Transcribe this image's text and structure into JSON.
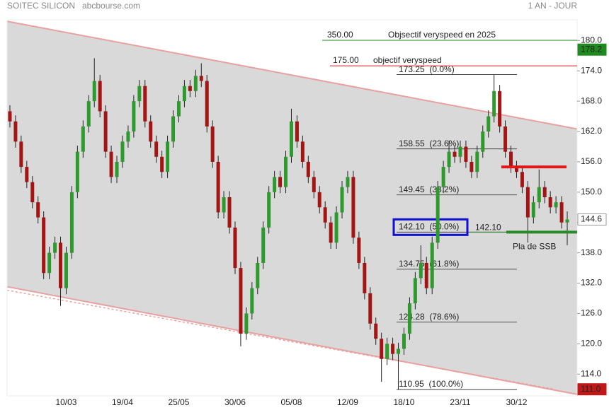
{
  "chart_data": {
    "type": "candlestick",
    "title": "SOITEC SILICON",
    "source": "abcbourse.com",
    "period": "1 AN - JOUR",
    "up_color": "#2e9a2e",
    "down_color": "#a31515",
    "categories": [
      null,
      null,
      null,
      null,
      null,
      null,
      null,
      null,
      null,
      null,
      "10/03",
      null,
      null,
      null,
      null,
      null,
      null,
      null,
      null,
      null,
      "19/04",
      null,
      null,
      null,
      null,
      null,
      null,
      null,
      null,
      null,
      "25/05",
      null,
      null,
      null,
      null,
      null,
      null,
      null,
      null,
      null,
      "30/06",
      null,
      null,
      null,
      null,
      null,
      null,
      null,
      null,
      null,
      "05/08",
      null,
      null,
      null,
      null,
      null,
      null,
      null,
      null,
      null,
      "12/09",
      null,
      null,
      null,
      null,
      null,
      null,
      null,
      null,
      null,
      "18/10",
      null,
      null,
      null,
      null,
      null,
      null,
      null,
      null,
      null,
      "23/11",
      null,
      null,
      null,
      null,
      null,
      null,
      null,
      null,
      null,
      "30/12",
      null,
      null,
      null,
      null,
      null,
      null,
      null,
      null,
      null
    ],
    "ohlc": [
      [
        166,
        167.2,
        162.8,
        164
      ],
      [
        164,
        165.2,
        158.8,
        160
      ],
      [
        160,
        161.2,
        153.8,
        155
      ],
      [
        155,
        156.2,
        150.8,
        152
      ],
      [
        152,
        153.2,
        146.8,
        148
      ],
      [
        148,
        149.2,
        143.8,
        145
      ],
      [
        145,
        146.2,
        132.8,
        134
      ],
      [
        134,
        139.2,
        132.8,
        138
      ],
      [
        138,
        141.2,
        136.8,
        140
      ],
      [
        140,
        141.2,
        127.5,
        131
      ],
      [
        131,
        139.2,
        129.8,
        138
      ],
      [
        138,
        151.2,
        136.8,
        150
      ],
      [
        150,
        159.2,
        148.8,
        158
      ],
      [
        158,
        164.2,
        156.8,
        163
      ],
      [
        163,
        169.2,
        161.8,
        168
      ],
      [
        168,
        176.5,
        166.8,
        172
      ],
      [
        172,
        173.2,
        164.8,
        166
      ],
      [
        166,
        167.2,
        156.8,
        158
      ],
      [
        158,
        159.2,
        151.8,
        153
      ],
      [
        153,
        157.2,
        151.8,
        156
      ],
      [
        156,
        161.2,
        154.8,
        160
      ],
      [
        160,
        163.2,
        158.8,
        162
      ],
      [
        162,
        169.2,
        160.8,
        168
      ],
      [
        168,
        172.2,
        166.8,
        171
      ],
      [
        171,
        172.2,
        162.8,
        164
      ],
      [
        164,
        165.2,
        158.8,
        160
      ],
      [
        160,
        161.2,
        155.8,
        157
      ],
      [
        157,
        158.2,
        152.8,
        154
      ],
      [
        154,
        161.2,
        152.8,
        160
      ],
      [
        160,
        166.2,
        158.8,
        165
      ],
      [
        165,
        169.2,
        163.8,
        168
      ],
      [
        168,
        172.2,
        166.8,
        171
      ],
      [
        171,
        172.2,
        168.8,
        170
      ],
      [
        170,
        174.2,
        168.8,
        173
      ],
      [
        173,
        175.5,
        170.8,
        172
      ],
      [
        172,
        173.2,
        161.8,
        163
      ],
      [
        163,
        164.2,
        154.8,
        156
      ],
      [
        156,
        157.2,
        144.8,
        146
      ],
      [
        146,
        150.2,
        144.8,
        149
      ],
      [
        149,
        150.2,
        141.8,
        143
      ],
      [
        143,
        144.2,
        133.8,
        135
      ],
      [
        135,
        136.2,
        119.5,
        122
      ],
      [
        122,
        127.2,
        120.8,
        126
      ],
      [
        126,
        132.2,
        124.8,
        131
      ],
      [
        131,
        137.2,
        129.8,
        136
      ],
      [
        136,
        144.2,
        134.8,
        143
      ],
      [
        143,
        151.2,
        141.8,
        150
      ],
      [
        150,
        154.2,
        148.8,
        153
      ],
      [
        153,
        154.2,
        149.8,
        151
      ],
      [
        151,
        158.2,
        149.8,
        157
      ],
      [
        157,
        166.5,
        155.8,
        164
      ],
      [
        164,
        165.2,
        158.8,
        160
      ],
      [
        160,
        161.2,
        154.8,
        156
      ],
      [
        156,
        157.2,
        151.8,
        153
      ],
      [
        153,
        154.2,
        148.8,
        150
      ],
      [
        150,
        151.2,
        145.8,
        147
      ],
      [
        147,
        148.2,
        142.8,
        144
      ],
      [
        144,
        145.2,
        138.8,
        140
      ],
      [
        140,
        147.2,
        138.8,
        146
      ],
      [
        146,
        152.2,
        144.8,
        151
      ],
      [
        151,
        154.2,
        149.8,
        153
      ],
      [
        153,
        154.2,
        139.8,
        141
      ],
      [
        141,
        142.2,
        134.8,
        136
      ],
      [
        136,
        137.2,
        128.8,
        130
      ],
      [
        130,
        131.2,
        122.8,
        124
      ],
      [
        124,
        125.2,
        119.8,
        121
      ],
      [
        121,
        122.2,
        112.5,
        117
      ],
      [
        117,
        121.2,
        115.8,
        120
      ],
      [
        120,
        121.2,
        116.8,
        118
      ],
      [
        118,
        120.2,
        110.95,
        119
      ],
      [
        119,
        123.2,
        117.8,
        122
      ],
      [
        122,
        129.2,
        120.8,
        128
      ],
      [
        128,
        134.2,
        126.8,
        133
      ],
      [
        133,
        139.5,
        131.8,
        136
      ],
      [
        136,
        137.2,
        129.8,
        131
      ],
      [
        131,
        141.2,
        129.8,
        140
      ],
      [
        140,
        152.2,
        138.8,
        151
      ],
      [
        151,
        156.2,
        149.8,
        155
      ],
      [
        155,
        160.2,
        153.8,
        158
      ],
      [
        158,
        159.2,
        155.8,
        157
      ],
      [
        157,
        160.2,
        155.8,
        159
      ],
      [
        159,
        160.2,
        154.8,
        156
      ],
      [
        156,
        157.2,
        152.8,
        154
      ],
      [
        154,
        159.2,
        152.8,
        158
      ],
      [
        158,
        163.2,
        156.8,
        162
      ],
      [
        162,
        166.2,
        160.8,
        165
      ],
      [
        165,
        173.25,
        163.8,
        170
      ],
      [
        170,
        171.2,
        161.8,
        163
      ],
      [
        163,
        164.2,
        156.8,
        158
      ],
      [
        158,
        159.2,
        153.8,
        155
      ],
      [
        155,
        156.2,
        152.8,
        154
      ],
      [
        154,
        155.2,
        149.8,
        151
      ],
      [
        151,
        152.2,
        140,
        145
      ],
      [
        145,
        149.2,
        143.8,
        148
      ],
      [
        148,
        154.5,
        146.8,
        151
      ],
      [
        151,
        152.2,
        147.8,
        149
      ],
      [
        149,
        150.2,
        145.8,
        147
      ],
      [
        147,
        149.2,
        145.8,
        148
      ],
      [
        148,
        149.2,
        142.8,
        144
      ],
      [
        144,
        146.2,
        139.5,
        144.6
      ]
    ],
    "ylim": [
      109.7,
      184.1
    ],
    "yticks": [
      {
        "value": 114,
        "label": "114.0"
      },
      {
        "value": 120,
        "label": "120.0"
      },
      {
        "value": 126,
        "label": "126.0"
      },
      {
        "value": 132,
        "label": "132.0"
      },
      {
        "value": 138,
        "label": "138.0"
      },
      {
        "value": 144,
        "label": "144.0"
      },
      {
        "value": 150,
        "label": "150.0"
      },
      {
        "value": 156,
        "label": "156.0"
      },
      {
        "value": 162,
        "label": "162.0"
      },
      {
        "value": 168,
        "label": "168.0"
      },
      {
        "value": 174,
        "label": "174.0"
      },
      {
        "value": 180,
        "label": "180.0"
      }
    ],
    "channel": {
      "upper": [
        183.8,
        162.5
      ],
      "lower": [
        131.3,
        110
      ],
      "lower_dashed": [
        130.6,
        111.1
      ],
      "color": "#e8a0a0"
    },
    "fibonacci": [
      {
        "value": 173.25,
        "label": "173.25  (0.0%)"
      },
      {
        "value": 158.55,
        "label": "158.55  (23.6%)"
      },
      {
        "value": 149.45,
        "label": "149.45  (38.2%)"
      },
      {
        "value": 142.1,
        "label": "142.10  (50.0%)"
      },
      {
        "value": 134.75,
        "label": "134.75  (61.8%)"
      },
      {
        "value": 124.28,
        "label": "124.28  (78.6%)"
      },
      {
        "value": 110.95,
        "label": "110.95  (100.0%)"
      }
    ],
    "objectives": [
      {
        "label": "350.00",
        "text": "Objsectif veryspeed en 2025",
        "color": "#1f8a1f"
      },
      {
        "value": 175,
        "label": "175.00",
        "text": "objectif veryspeed",
        "color": "#d42020"
      }
    ],
    "resistance": {
      "value": 155,
      "color": "#e01818"
    },
    "support": {
      "value": 142.1,
      "label": "142.10",
      "text": "Pla de SSB",
      "color": "#2a8a2a"
    },
    "price_badges": [
      {
        "value": 178.2,
        "color": "#1f8a1f",
        "text_color": "#fff"
      },
      {
        "value": 144.6,
        "color": "#fff",
        "text_color": "#222"
      },
      {
        "value": 111,
        "label": "111.0",
        "color": "#c01818",
        "text_color": "#fff"
      }
    ]
  }
}
